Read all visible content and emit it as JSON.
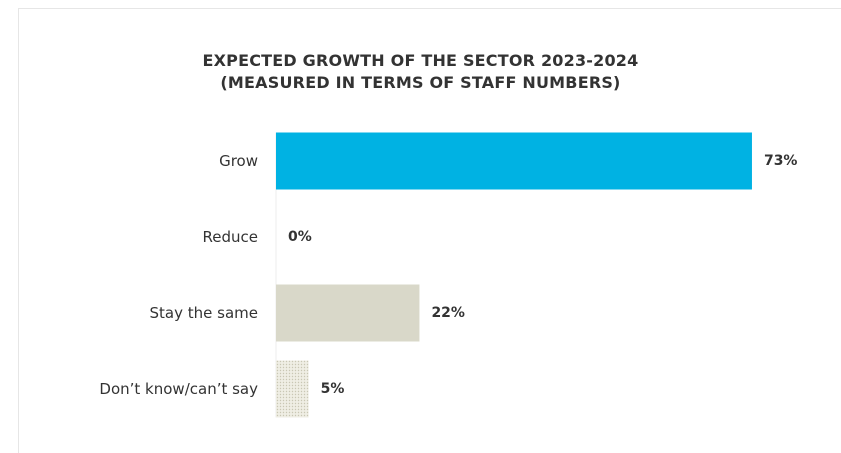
{
  "chart_data": {
    "type": "bar",
    "orientation": "horizontal",
    "title_lines": [
      "EXPECTED GROWTH OF THE SECTOR 2023-2024",
      "(MEASURED IN TERMS OF STAFF NUMBERS)"
    ],
    "categories": [
      "Grow",
      "Reduce",
      "Stay the same",
      "Don’t know/can’t say"
    ],
    "values": [
      73,
      0,
      22,
      5
    ],
    "value_labels": [
      "73%",
      "0%",
      "22%",
      "5%"
    ],
    "unit": "%",
    "xlim": [
      0,
      100
    ],
    "grid": false,
    "legend": "none",
    "colors": [
      "#00b2e3",
      "#ffffff",
      "#d9d8c9",
      "#e4e3d5"
    ],
    "fill_styles": [
      "solid",
      "solid",
      "solid",
      "dotted"
    ],
    "axis_line_color": "#eeeeee"
  }
}
